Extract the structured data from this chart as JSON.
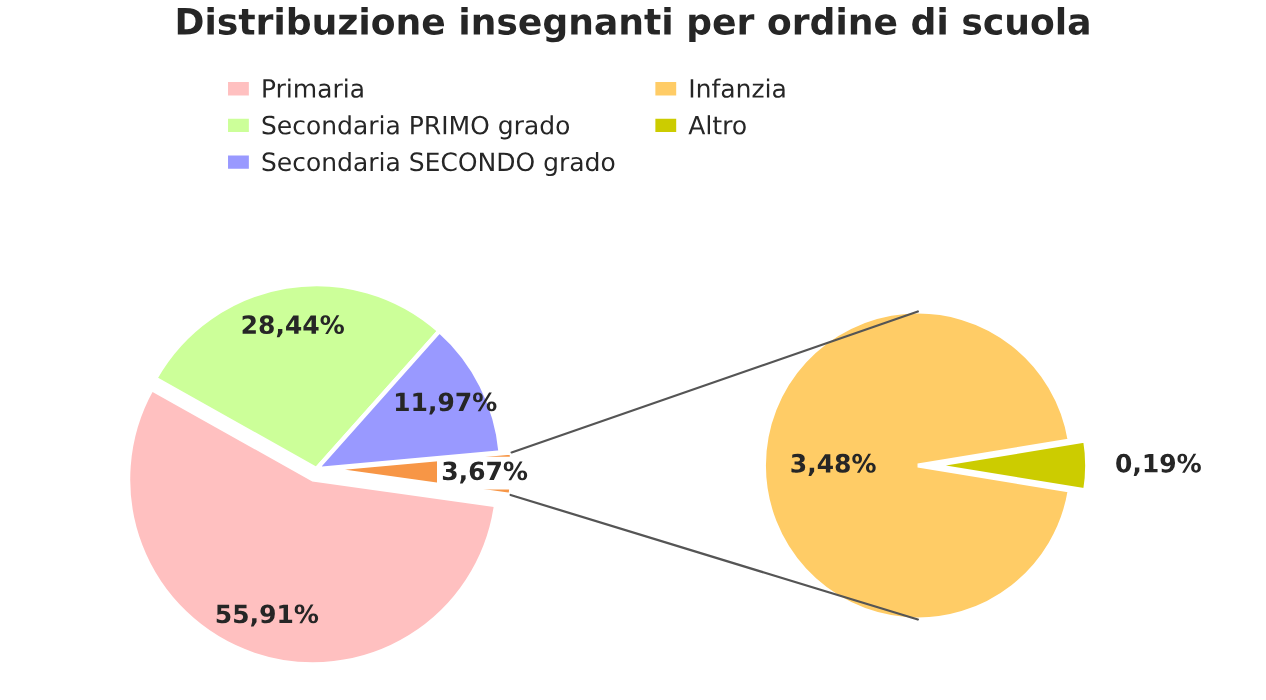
{
  "chart_data": [
    {
      "type": "pie",
      "title": "Distribuzione insegnanti per ordine di scuola",
      "categories": [
        "Primaria",
        "Secondaria PRIMO grado",
        "Secondaria SECONDO grado",
        null
      ],
      "values": [
        55.91,
        28.44,
        11.97,
        3.67
      ],
      "colors": [
        "#ffc0c0",
        "#ccff99",
        "#9999ff",
        "#f79646"
      ],
      "value_labels": [
        "55,91%",
        "28,44%",
        "11,97%",
        "3,67%"
      ],
      "legend": "top"
    },
    {
      "type": "pie",
      "categories": [
        "Infanzia",
        "Altro"
      ],
      "values": [
        3.48,
        0.19
      ],
      "colors": [
        "#ffcc66",
        "#cccc00"
      ],
      "value_labels": [
        "3,48%",
        "0,19%"
      ],
      "legend": "top"
    }
  ]
}
